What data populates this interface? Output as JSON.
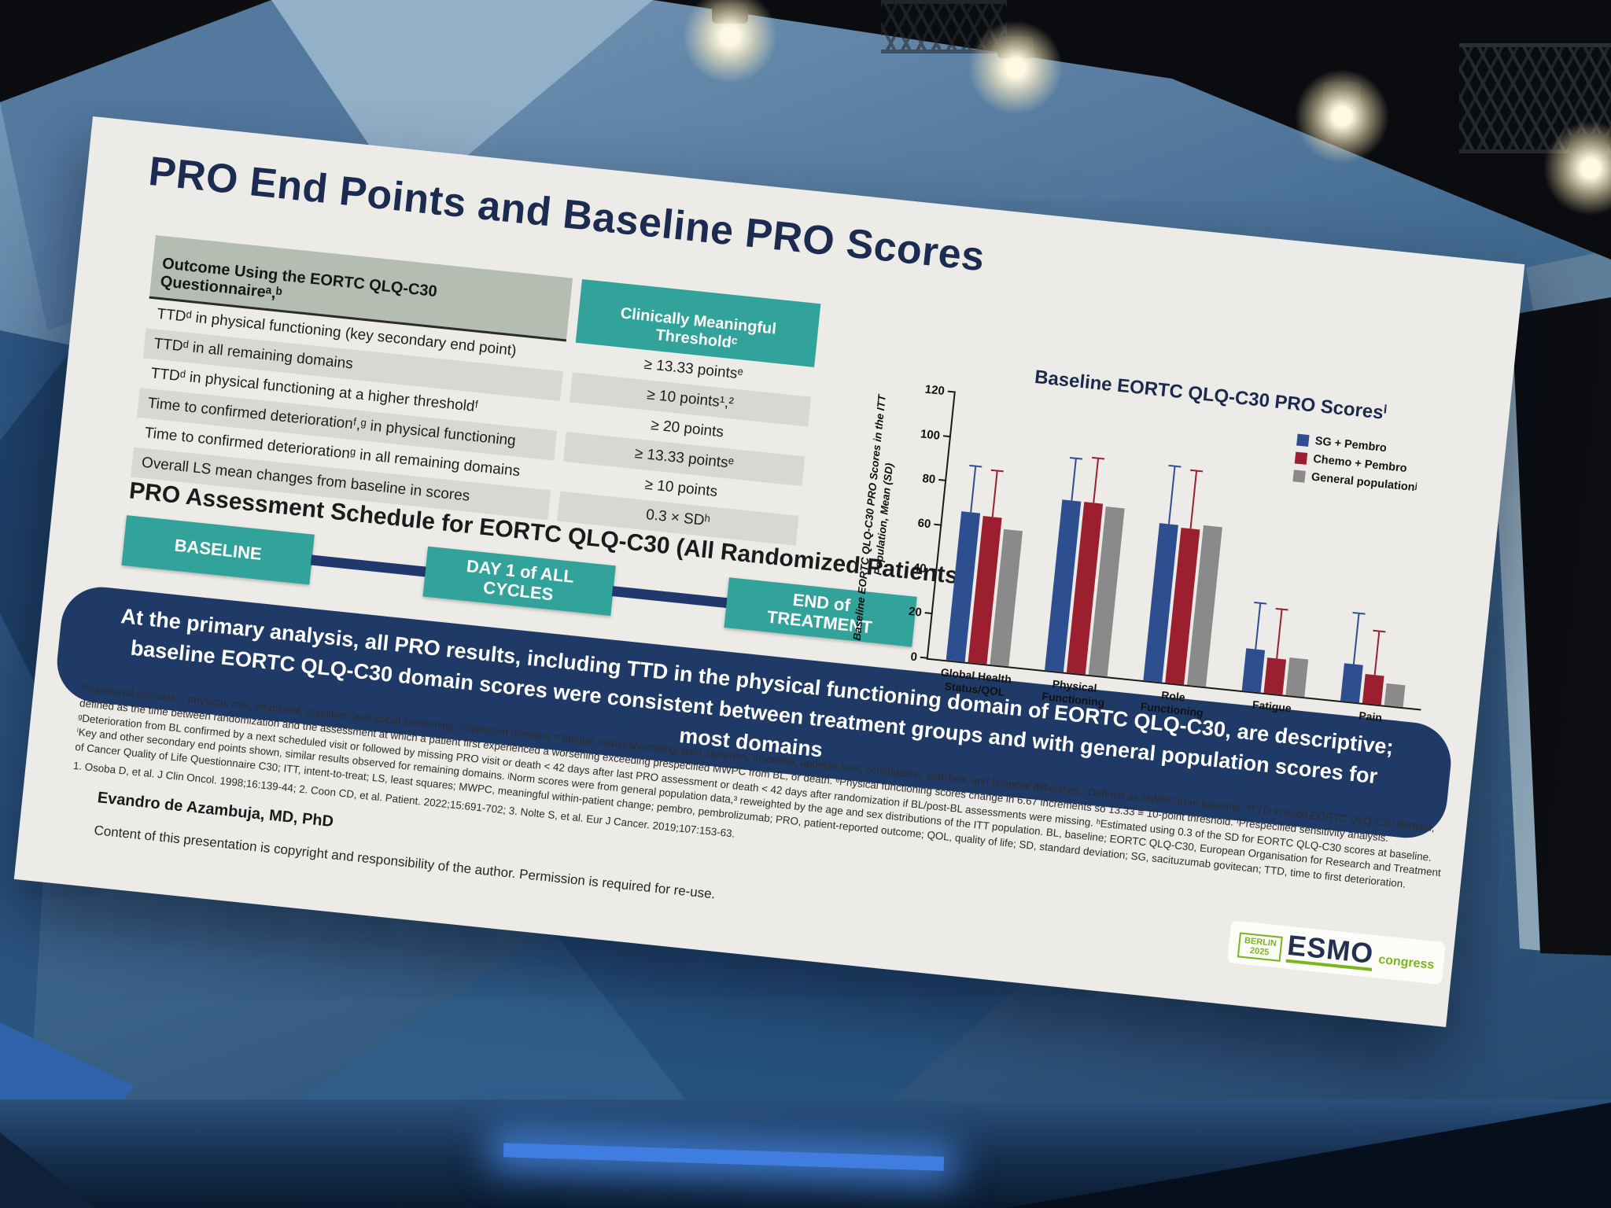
{
  "slide": {
    "title": "PRO End Points and Baseline PRO Scores",
    "table": {
      "col1_header": "Outcome Using the EORTC QLQ-C30 Questionnaireᵃ,ᵇ",
      "col2_header": "Clinically Meaningful Thresholdᶜ",
      "rows": [
        {
          "outcome": "TTDᵈ in physical functioning (key secondary end point)",
          "threshold": "≥ 13.33 pointsᵉ"
        },
        {
          "outcome": "TTDᵈ in all remaining domains",
          "threshold": "≥ 10 points¹,²"
        },
        {
          "outcome": "TTDᵈ in physical functioning at a higher thresholdᶠ",
          "threshold": "≥ 20 points"
        },
        {
          "outcome": "Time to confirmed deteriorationᶠ,ᵍ in physical functioning",
          "threshold": "≥ 13.33 pointsᵉ"
        },
        {
          "outcome": "Time to confirmed deteriorationᵍ in all remaining domains",
          "threshold": "≥ 10 points"
        },
        {
          "outcome": "Overall LS mean changes from baseline in scores",
          "threshold": "0.3 × SDʰ"
        }
      ]
    },
    "schedule": {
      "heading": "PRO Assessment Schedule for EORTC QLQ-C30 (All Randomized Patients)",
      "steps": [
        "BASELINE",
        "DAY 1 of ALL\nCYCLES",
        "END of\nTREATMENT"
      ]
    },
    "banner": "At the primary analysis, all PRO results, including TTD in the physical functioning domain of EORTC QLQ-C30, are descriptive; baseline EORTC QLQ-C30 domain scores were consistent between treatment groups and with general population scores for most domains",
    "footnotes": [
      "ᵃFunctional domains = physical, role, emotional, cognitive, and social functioning. ᵇSymptom domains = fatigue, nausea/vomiting, pain, dyspnea, insomnia, appetite loss, constipation, diarrhea, and financial difficulties. ᶜDefined as MWPC from baseline. ᵈTTD in each EORTC QLQ-C30 domain, defined as the time between randomization and the assessment at which a patient first experienced a worsening exceeding prespecified MWPC from BL, or death. ᵉPhysical functioning scores change in 6.67 increments so 13.33 ≡ 10-point threshold. ᶠPrespecified sensitivity analysis. ᵍDeterioration from BL confirmed by a next scheduled visit or followed by missing PRO visit or death < 42 days after last PRO assessment or death < 42 days after randomization if BL/post-BL assessments were missing. ʰEstimated using 0.3 of the SD for EORTC QLQ-C30 scores at baseline. ⁱKey and other secondary end points shown, similar results observed for remaining domains. ʲNorm scores were from general population data,³ reweighted by the age and sex distributions of the ITT population. BL, baseline; EORTC QLQ-C30, European Organisation for Research and Treatment of Cancer Quality of Life Questionnaire C30; ITT, intent-to-treat; LS, least squares; MWPC, meaningful within-patient change; pembro, pembrolizumab; PRO, patient-reported outcome; QOL, quality of life; SD, standard deviation; SG, sacituzumab govitecan; TTD, time to first deterioration.",
      "1. Osoba D, et al. J Clin Oncol. 1998;16:139-44; 2. Coon CD, et al. Patient. 2022;15:691-702; 3. Nolte S, et al. Eur J Cancer. 2019;107:153-63."
    ],
    "author": "Evandro de Azambuja, MD, PhD",
    "copyright": "Content of this presentation is copyright and responsibility of the author. Permission is required for re-use.",
    "logo": {
      "city": "BERLIN",
      "year": "2025",
      "name": "ESMO",
      "suffix": "congress"
    }
  },
  "chart_data": {
    "type": "bar",
    "title": "Baseline EORTC QLQ-C30 PRO Scoresⁱ",
    "ylabel": "Baseline EORTC QLQ-C30 PRO Scores in the ITT Population, Mean (SD)",
    "ylim": [
      0,
      120
    ],
    "yticks": [
      0,
      20,
      40,
      60,
      80,
      100,
      120
    ],
    "grid": false,
    "legend_position": "upper right",
    "categories": [
      "Global Health\nStatus/QOL",
      "Physical\nFunctioning",
      "Role\nFunctioning",
      "Fatigue",
      "Pain"
    ],
    "series": [
      {
        "name": "SG + Pembro",
        "color": "#2e4f8f",
        "values": [
          67,
          77,
          71,
          19,
          17
        ],
        "sd_upper": [
          88,
          96,
          97,
          40,
          40
        ]
      },
      {
        "name": "Chemo + Pembro",
        "color": "#9b1f2e",
        "values": [
          66,
          77,
          70,
          16,
          13
        ],
        "sd_upper": [
          87,
          97,
          96,
          38,
          33
        ]
      },
      {
        "name": "General populationʲ",
        "color": "#8a8a8a",
        "values": [
          61,
          76,
          72,
          17,
          10
        ],
        "sd_upper": [
          null,
          null,
          null,
          null,
          null
        ]
      }
    ]
  },
  "colors": {
    "teal_accent": "#31a39a",
    "navy_banner": "#203a67",
    "title_navy": "#1c2b50",
    "logo_green": "#79b51e"
  }
}
